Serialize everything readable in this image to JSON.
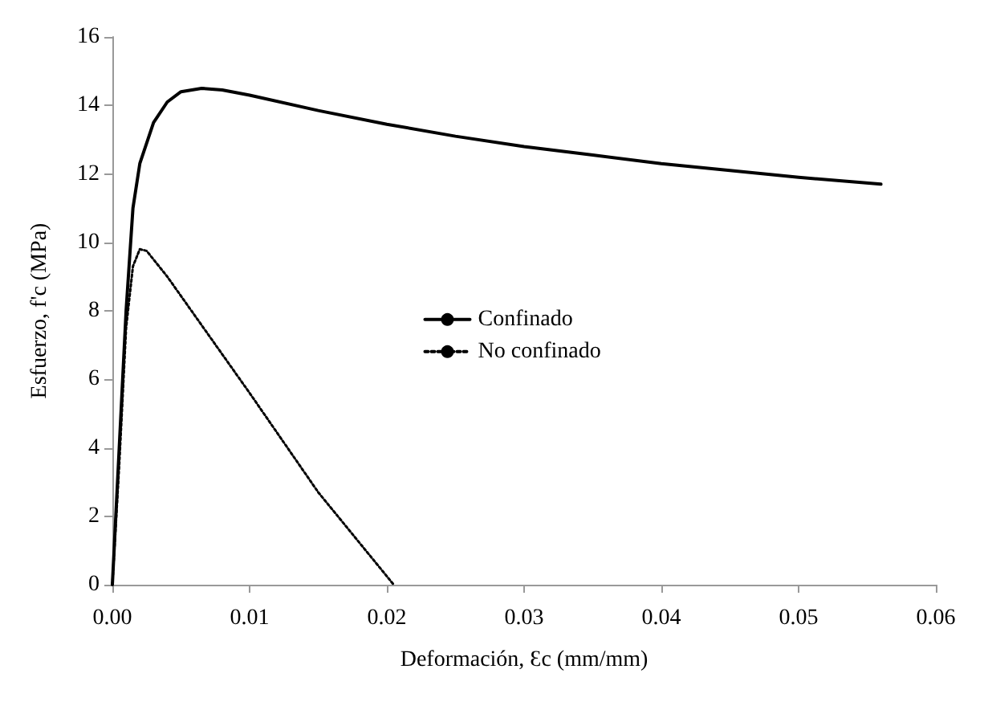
{
  "chart_data": {
    "type": "line",
    "xlabel": "Deformación, Ɛc (mm/mm)",
    "ylabel": "Esfuerzo, f'c (MPa)",
    "xlim": [
      0,
      0.06
    ],
    "xticks": [
      {
        "value": 0,
        "label": "0.00"
      },
      {
        "value": 0.01,
        "label": "0.01"
      },
      {
        "value": 0.02,
        "label": "0.02"
      },
      {
        "value": 0.03,
        "label": "0.03"
      },
      {
        "value": 0.04,
        "label": "0.04"
      },
      {
        "value": 0.05,
        "label": "0.05"
      },
      {
        "value": 0.06,
        "label": "0.06"
      }
    ],
    "ylim": [
      0,
      16
    ],
    "yticks": [
      0,
      2,
      4,
      6,
      8,
      10,
      12,
      14,
      16
    ],
    "grid": false,
    "legend": "center",
    "marker": "none",
    "series": [
      {
        "name": "Confinado",
        "color": "#000000",
        "line_style": "solid",
        "x": [
          0,
          0.0005,
          0.001,
          0.0015,
          0.002,
          0.003,
          0.004,
          0.005,
          0.0065,
          0.008,
          0.01,
          0.015,
          0.02,
          0.025,
          0.03,
          0.035,
          0.04,
          0.045,
          0.05,
          0.056
        ],
        "values": [
          0,
          4,
          8,
          11,
          12.3,
          13.5,
          14.1,
          14.4,
          14.5,
          14.45,
          14.3,
          13.85,
          13.45,
          13.1,
          12.8,
          12.55,
          12.3,
          12.1,
          11.9,
          11.7
        ]
      },
      {
        "name": "No confinado",
        "color": "#000000",
        "line_style": "dotted",
        "x": [
          0,
          0.0005,
          0.001,
          0.0015,
          0.002,
          0.0025,
          0.004,
          0.01,
          0.015,
          0.0205
        ],
        "values": [
          0,
          3.5,
          7.5,
          9.3,
          9.8,
          9.75,
          9,
          5.6,
          2.7,
          0
        ]
      }
    ]
  }
}
